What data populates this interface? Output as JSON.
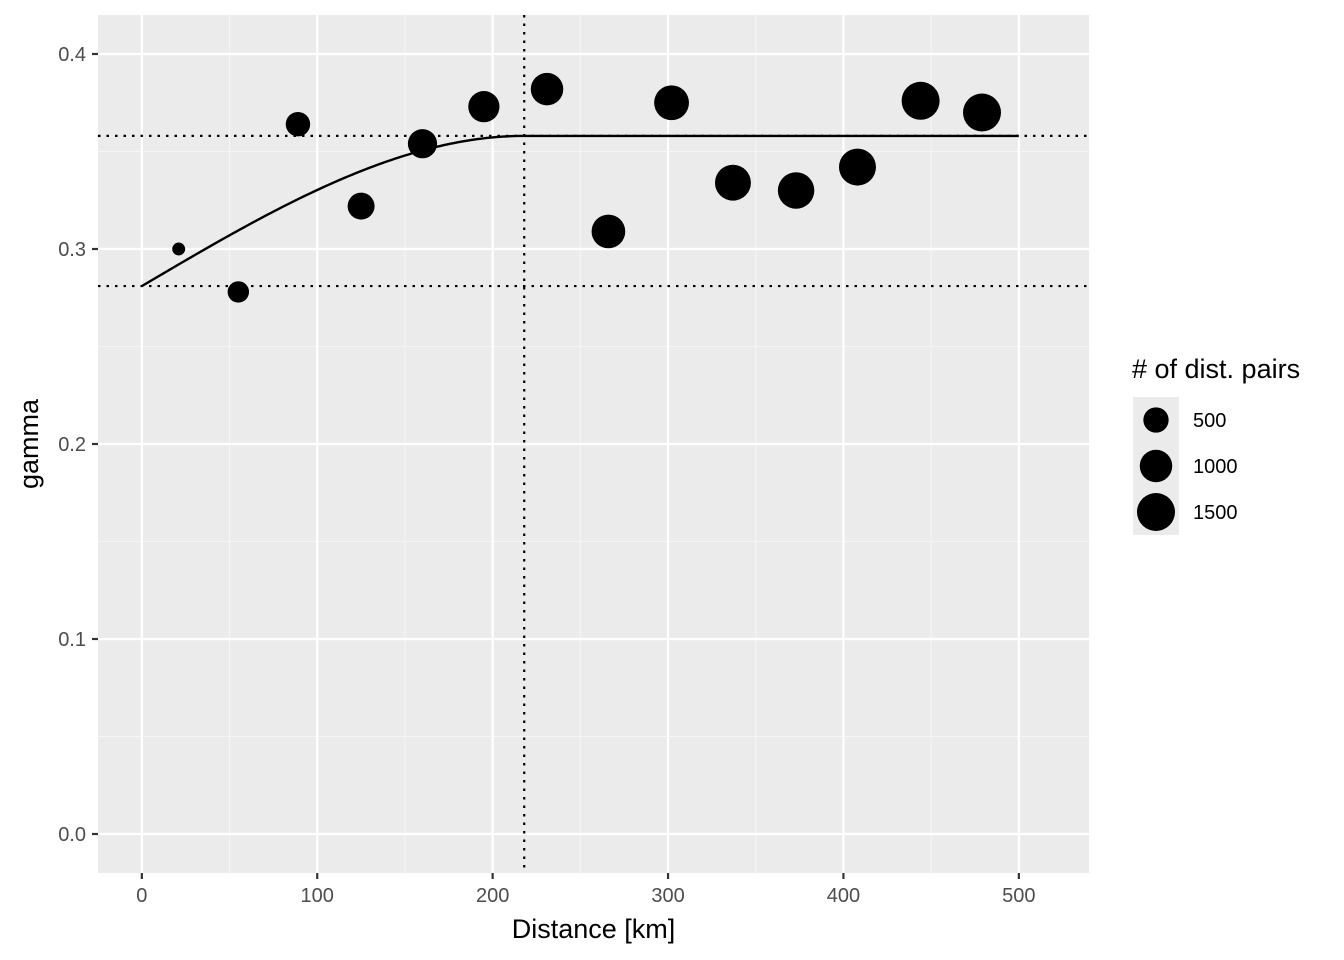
{
  "chart_data": {
    "type": "scatter",
    "xlabel": "Distance [km]",
    "ylabel": "gamma",
    "xlim": [
      -25,
      540
    ],
    "ylim": [
      -0.02,
      0.42
    ],
    "x_ticks": [
      0,
      100,
      200,
      300,
      400,
      500
    ],
    "y_ticks": [
      0.0,
      0.1,
      0.2,
      0.3,
      0.4
    ],
    "x_tick_labels": [
      "0",
      "100",
      "200",
      "300",
      "400",
      "500"
    ],
    "y_tick_labels": [
      "0.0",
      "0.1",
      "0.2",
      "0.3",
      "0.4"
    ],
    "grid": true,
    "colors": {
      "panel_background": "#ebebeb",
      "grid_major": "#ffffff",
      "grid_minor": "#f5f5f5",
      "points": "#000000",
      "line": "#000000"
    },
    "points": [
      {
        "x": 21,
        "y": 0.3,
        "np": 40
      },
      {
        "x": 55,
        "y": 0.278,
        "np": 300
      },
      {
        "x": 89,
        "y": 0.364,
        "np": 450
      },
      {
        "x": 125,
        "y": 0.322,
        "np": 600
      },
      {
        "x": 160,
        "y": 0.354,
        "np": 750
      },
      {
        "x": 195,
        "y": 0.373,
        "np": 900
      },
      {
        "x": 231,
        "y": 0.382,
        "np": 1000
      },
      {
        "x": 266,
        "y": 0.309,
        "np": 1100
      },
      {
        "x": 302,
        "y": 0.375,
        "np": 1200
      },
      {
        "x": 337,
        "y": 0.334,
        "np": 1300
      },
      {
        "x": 373,
        "y": 0.33,
        "np": 1350
      },
      {
        "x": 408,
        "y": 0.342,
        "np": 1400
      },
      {
        "x": 444,
        "y": 0.376,
        "np": 1500
      },
      {
        "x": 479,
        "y": 0.37,
        "np": 1500
      }
    ],
    "model_curve": {
      "type": "spherical",
      "nugget": 0.281,
      "sill": 0.358,
      "range": 218,
      "x_max": 500
    },
    "reference_lines": {
      "horizontal": [
        0.358,
        0.281
      ],
      "vertical": [
        218
      ],
      "style": "dotted"
    },
    "size_legend": {
      "title": "# of dist. pairs",
      "placement": "right",
      "entries": [
        {
          "label": "500",
          "value": 500
        },
        {
          "label": "1000",
          "value": 1000
        },
        {
          "label": "1500",
          "value": 1500
        }
      ]
    }
  }
}
